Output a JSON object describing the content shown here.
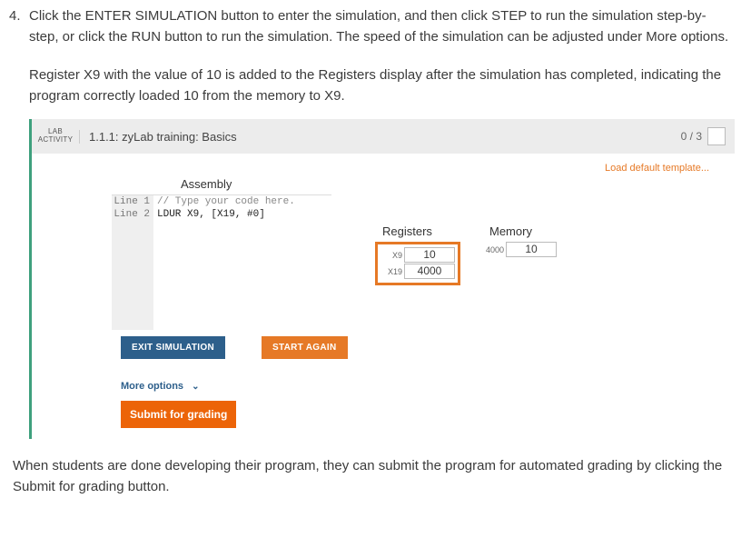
{
  "step_number": "4.",
  "instruction_text": "Click the ENTER SIMULATION button to enter the simulation, and then click STEP to run the simulation step-by-step, or click the RUN button to run the simulation. The speed of the simulation can be adjusted under More options.",
  "instruction_text2": "Register X9 with the value of 10 is added to the Registers display after the simulation has completed, indicating the program correctly loaded 10 from the memory to X9.",
  "lab": {
    "label_top": "LAB",
    "label_bottom": "ACTIVITY",
    "title": "1.1.1: zyLab training: Basics",
    "score": "0 / 3"
  },
  "load_template": "Load default template...",
  "assembly_label": "Assembly",
  "code": {
    "line1_gutter": "Line 1",
    "line1_text": "// Type your code here.",
    "line2_gutter": "Line 2",
    "line2_text": "LDUR X9, [X19, #0]"
  },
  "buttons": {
    "exit": "EXIT SIMULATION",
    "start_again": "START AGAIN",
    "more_options": "More options",
    "submit": "Submit for grading"
  },
  "registers": {
    "title": "Registers",
    "rows": [
      {
        "label": "X9",
        "value": "10"
      },
      {
        "label": "X19",
        "value": "4000"
      }
    ]
  },
  "memory": {
    "title": "Memory",
    "rows": [
      {
        "label": "4000",
        "value": "10"
      }
    ]
  },
  "footer_text": "When students are done developing their program, they can submit the program for automated grading by clicking the Submit for grading button.",
  "colors": {
    "accent_orange": "#e67926",
    "accent_blue": "#2d5f8b",
    "accent_green": "#3ea07d",
    "header_bg": "#ececec"
  }
}
